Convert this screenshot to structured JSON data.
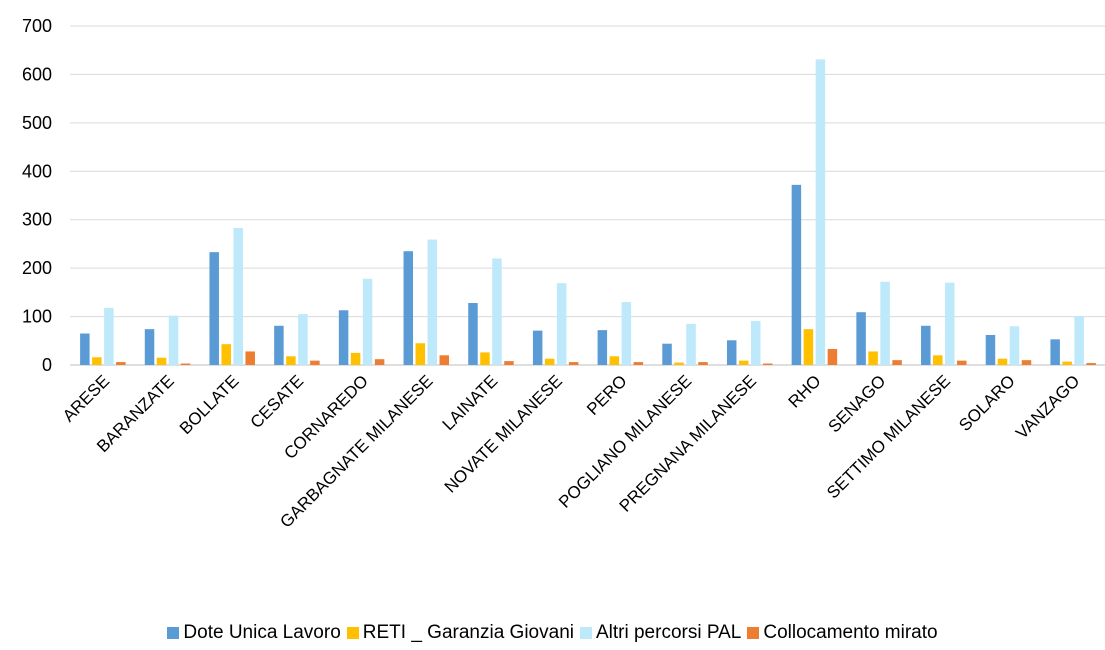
{
  "chart_data": {
    "type": "bar",
    "title": "",
    "xlabel": "",
    "ylabel": "",
    "ylim": [
      0,
      700
    ],
    "yticks": [
      0,
      100,
      200,
      300,
      400,
      500,
      600,
      700
    ],
    "grid": true,
    "legend_position": "bottom",
    "categories": [
      "ARESE",
      "BARANZATE",
      "BOLLATE",
      "CESATE",
      "CORNAREDO",
      "GARBAGNATE MILANESE",
      "LAINATE",
      "NOVATE MILANESE",
      "PERO",
      "POGLIANO MILANESE",
      "PREGNANA MILANESE",
      "RHO",
      "SENAGO",
      "SETTIMO MILANESE",
      "SOLARO",
      "VANZAGO"
    ],
    "series": [
      {
        "name": "Dote Unica Lavoro",
        "color": "#5B9BD5",
        "values": [
          65,
          74,
          233,
          81,
          113,
          235,
          128,
          71,
          72,
          44,
          51,
          372,
          109,
          81,
          62,
          53
        ]
      },
      {
        "name": "RETI _ Garanzia Giovani",
        "color": "#FFC000",
        "values": [
          16,
          15,
          43,
          18,
          25,
          45,
          26,
          13,
          18,
          5,
          9,
          74,
          28,
          20,
          13,
          7
        ]
      },
      {
        "name": "Altri percorsi PAL",
        "color": "#BDE9FB",
        "values": [
          118,
          102,
          283,
          105,
          178,
          259,
          220,
          169,
          130,
          85,
          91,
          631,
          172,
          170,
          80,
          101
        ]
      },
      {
        "name": "Collocamento mirato",
        "color": "#ED7D31",
        "values": [
          6,
          3,
          28,
          9,
          12,
          20,
          8,
          6,
          6,
          6,
          3,
          33,
          10,
          9,
          10,
          4
        ]
      }
    ]
  }
}
